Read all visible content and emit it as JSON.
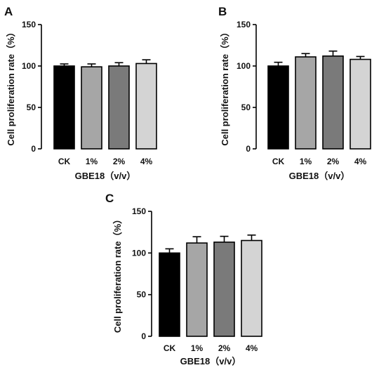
{
  "colors": {
    "bar_fills": [
      "#000000",
      "#a6a6a6",
      "#7a7a7a",
      "#d4d4d4"
    ],
    "axis": "#000000",
    "error_bar": "#000000"
  },
  "chart_data": [
    {
      "type": "bar",
      "panel": "A",
      "categories": [
        "CK",
        "1%",
        "2%",
        "4%"
      ],
      "values": [
        100,
        99,
        100,
        103
      ],
      "errors": [
        2.5,
        3.5,
        4,
        4.5
      ],
      "xlabel": "GBE18（v/v）",
      "ylabel": "Cell proliferation rate（%）",
      "yticks": [
        "0",
        "50",
        "100",
        "150"
      ],
      "ylim": [
        0,
        150
      ],
      "grid": false
    },
    {
      "type": "bar",
      "panel": "B",
      "categories": [
        "CK",
        "1%",
        "2%",
        "4%"
      ],
      "values": [
        100,
        111,
        112,
        108
      ],
      "errors": [
        4.5,
        4,
        6,
        3.5
      ],
      "xlabel": "GBE18（v/v）",
      "ylabel": "Cell proliferation rate（%）",
      "yticks": [
        "0",
        "50",
        "100",
        "150"
      ],
      "ylim": [
        0,
        150
      ],
      "grid": false
    },
    {
      "type": "bar",
      "panel": "C",
      "categories": [
        "CK",
        "1%",
        "2%",
        "4%"
      ],
      "values": [
        100,
        112,
        113,
        115
      ],
      "errors": [
        5,
        7.5,
        7,
        6.5
      ],
      "xlabel": "GBE18（v/v）",
      "ylabel": "Cell proliferation rate（%）",
      "yticks": [
        "0",
        "50",
        "100",
        "150"
      ],
      "ylim": [
        0,
        150
      ],
      "grid": false
    }
  ]
}
